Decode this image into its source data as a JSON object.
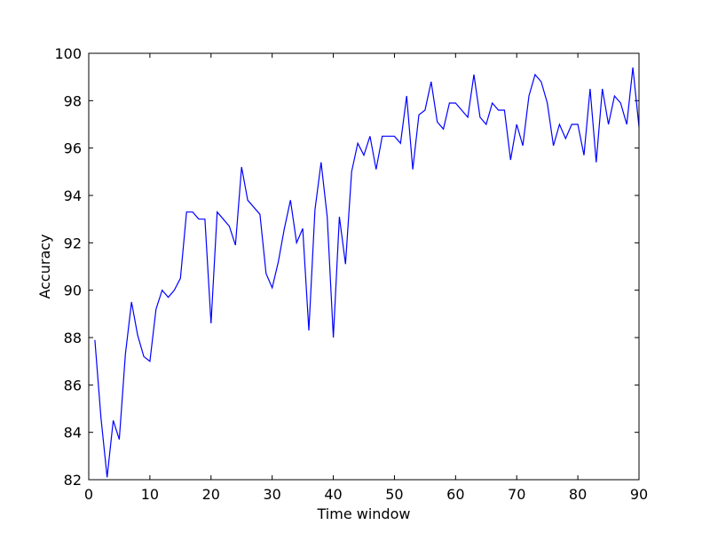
{
  "chart_data": {
    "type": "line",
    "xlabel": "Time window",
    "ylabel": "Accuracy",
    "xlim": [
      0,
      90
    ],
    "ylim": [
      82,
      100
    ],
    "xticks": [
      0,
      10,
      20,
      30,
      40,
      50,
      60,
      70,
      80,
      90
    ],
    "yticks": [
      82,
      84,
      86,
      88,
      90,
      92,
      94,
      96,
      98,
      100
    ],
    "grid": false,
    "line_color": "#0000ff",
    "series": [
      {
        "x": [
          1,
          2,
          3,
          4,
          5,
          6,
          7,
          8,
          9,
          10,
          11,
          12,
          13,
          14,
          15,
          16,
          17,
          18,
          19,
          20,
          21,
          22,
          23,
          24,
          25,
          26,
          27,
          28,
          29,
          30,
          31,
          32,
          33,
          34,
          35,
          36,
          37,
          38,
          39,
          40,
          41,
          42,
          43,
          44,
          45,
          46,
          47,
          48,
          49,
          50,
          51,
          52,
          53,
          54,
          55,
          56,
          57,
          58,
          59,
          60,
          61,
          62,
          63,
          64,
          65,
          66,
          67,
          68,
          69,
          70,
          71,
          72,
          73,
          74,
          75,
          76,
          77,
          78,
          79,
          80,
          81,
          82,
          83,
          84,
          85,
          86,
          87,
          88,
          89,
          90
        ],
        "y": [
          87.9,
          84.6,
          82.1,
          84.5,
          83.7,
          87.3,
          89.5,
          88.1,
          87.2,
          87.0,
          89.2,
          90.0,
          89.7,
          90.0,
          90.5,
          93.3,
          93.3,
          93.0,
          93.0,
          88.6,
          93.3,
          93.0,
          92.7,
          91.9,
          95.2,
          93.8,
          93.5,
          93.2,
          90.7,
          90.1,
          91.2,
          92.6,
          93.8,
          92.0,
          92.6,
          88.3,
          93.4,
          95.4,
          93.1,
          88.0,
          93.1,
          91.1,
          95.0,
          96.2,
          95.7,
          96.5,
          95.1,
          96.5,
          96.5,
          96.5,
          96.2,
          98.2,
          95.1,
          97.4,
          97.6,
          98.8,
          97.1,
          96.8,
          97.9,
          97.9,
          97.6,
          97.3,
          99.1,
          97.3,
          97.0,
          97.9,
          97.6,
          97.6,
          95.5,
          97.0,
          96.1,
          98.2,
          99.1,
          98.8,
          97.9,
          96.1,
          97.0,
          96.4,
          97.0,
          97.0,
          95.7,
          98.5,
          95.4,
          98.5,
          97.0,
          98.2,
          97.9,
          97.0,
          99.4,
          96.9
        ]
      }
    ]
  }
}
